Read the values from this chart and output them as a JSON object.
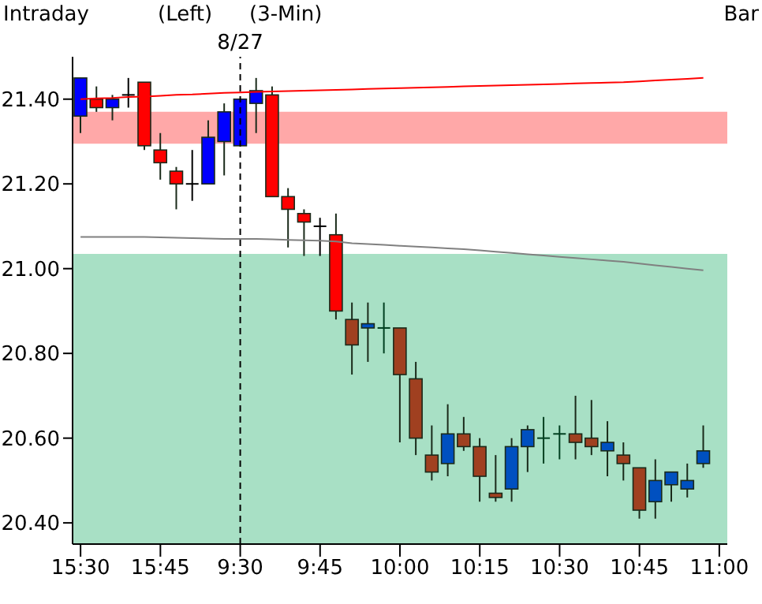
{
  "chart_data": {
    "type": "candlestick",
    "title": "(3-Min)",
    "annotations": [
      "Intraday",
      "(Left)",
      "Bar"
    ],
    "categories": [
      "15:30",
      null,
      null,
      null,
      null,
      "15:45",
      null,
      null,
      null,
      null,
      "9:30",
      null,
      null,
      null,
      null,
      "9:45",
      null,
      null,
      null,
      null,
      "10:00",
      null,
      null,
      null,
      null,
      "10:15",
      null,
      null,
      null,
      null,
      "10:30",
      null,
      null,
      null,
      null,
      "10:45",
      null,
      null,
      null,
      null,
      "11:00"
    ],
    "ohlc": [
      [
        21.36,
        21.45,
        21.32,
        21.45
      ],
      [
        21.4,
        21.43,
        21.37,
        21.38
      ],
      [
        21.38,
        21.41,
        21.35,
        21.4
      ],
      [
        21.41,
        21.45,
        21.38,
        21.41
      ],
      [
        21.44,
        21.44,
        21.28,
        21.29
      ],
      [
        21.28,
        21.32,
        21.21,
        21.25
      ],
      [
        21.23,
        21.24,
        21.14,
        21.2
      ],
      [
        21.2,
        21.28,
        21.16,
        21.2
      ],
      [
        21.2,
        21.35,
        21.2,
        21.31
      ],
      [
        21.3,
        21.39,
        21.22,
        21.37
      ],
      [
        21.29,
        21.4,
        21.29,
        21.4
      ],
      [
        21.39,
        21.45,
        21.32,
        21.42
      ],
      [
        21.41,
        21.43,
        21.17,
        21.17
      ],
      [
        21.17,
        21.19,
        21.05,
        21.14
      ],
      [
        21.13,
        21.14,
        21.03,
        21.11
      ],
      [
        21.1,
        21.12,
        21.03,
        21.1
      ],
      [
        21.08,
        21.13,
        20.88,
        20.9
      ],
      [
        20.88,
        20.92,
        20.75,
        20.82
      ],
      [
        20.86,
        20.92,
        20.78,
        20.87
      ],
      [
        20.86,
        20.92,
        20.8,
        20.86
      ],
      [
        20.86,
        20.86,
        20.59,
        20.75
      ],
      [
        20.74,
        20.78,
        20.56,
        20.6
      ],
      [
        20.56,
        20.63,
        20.5,
        20.52
      ],
      [
        20.54,
        20.68,
        20.51,
        20.61
      ],
      [
        20.61,
        20.65,
        20.57,
        20.58
      ],
      [
        20.58,
        20.6,
        20.45,
        20.51
      ],
      [
        20.47,
        20.56,
        20.45,
        20.46
      ],
      [
        20.48,
        20.6,
        20.45,
        20.58
      ],
      [
        20.58,
        20.63,
        20.52,
        20.62
      ],
      [
        20.6,
        20.65,
        20.54,
        20.6
      ],
      [
        20.61,
        20.63,
        20.55,
        20.61
      ],
      [
        20.61,
        20.7,
        20.55,
        20.59
      ],
      [
        20.6,
        20.69,
        20.56,
        20.58
      ],
      [
        20.57,
        20.64,
        20.51,
        20.59
      ],
      [
        20.56,
        20.59,
        20.5,
        20.54
      ],
      [
        20.53,
        20.53,
        20.41,
        20.43
      ],
      [
        20.45,
        20.55,
        20.41,
        20.5
      ],
      [
        20.49,
        20.52,
        20.45,
        20.52
      ],
      [
        20.48,
        20.54,
        20.46,
        20.5
      ],
      [
        20.54,
        20.63,
        20.53,
        20.57
      ],
      null
    ],
    "colors": [
      "#0000ff",
      "#ff0000",
      "#0000ff",
      "#000000",
      "#ff0000",
      "#ff0000",
      "#ff0000",
      "#000000",
      "#0000ff",
      "#0000ff",
      "#0000ff",
      "#0000ff",
      "#ff0000",
      "#ff0000",
      "#ff0000",
      "#000000",
      "#ff0000",
      "#a04020",
      "#0050c0",
      "#004020",
      "#a04020",
      "#a04020",
      "#a04020",
      "#0050c0",
      "#a04020",
      "#a04020",
      "#a04020",
      "#0050c0",
      "#0050c0",
      "#004020",
      "#004020",
      "#a04020",
      "#a04020",
      "#0050c0",
      "#a04020",
      "#a04020",
      "#0050c0",
      "#0050c0",
      "#0050c0",
      "#0050c0",
      null
    ],
    "series": [
      {
        "type": "line",
        "color": "#ff0000",
        "values": [
          21.4,
          21.402,
          21.403,
          21.405,
          21.406,
          21.408,
          21.41,
          21.411,
          21.413,
          21.415,
          21.416,
          21.417,
          21.418,
          21.419,
          21.42,
          21.421,
          21.422,
          21.423,
          21.424,
          21.425,
          21.426,
          21.427,
          21.428,
          21.429,
          21.43,
          21.431,
          21.432,
          21.433,
          21.434,
          21.435,
          21.436,
          21.437,
          21.438,
          21.439,
          21.44,
          21.442,
          21.444,
          21.446,
          21.448,
          21.45,
          null
        ]
      },
      {
        "type": "line",
        "color": "#808080",
        "values": [
          21.075,
          21.075,
          21.075,
          21.075,
          21.075,
          21.074,
          21.073,
          21.072,
          21.071,
          21.07,
          21.07,
          21.07,
          21.069,
          21.068,
          21.067,
          21.066,
          21.064,
          21.06,
          21.058,
          21.056,
          21.054,
          21.052,
          21.05,
          21.048,
          21.046,
          21.043,
          21.04,
          21.037,
          21.034,
          21.031,
          21.028,
          21.025,
          21.022,
          21.019,
          21.016,
          21.012,
          21.008,
          21.004,
          21.0,
          20.996,
          null
        ]
      }
    ],
    "ylim": [
      20.35,
      21.5
    ],
    "yticks": [
      {
        "value": 20.4,
        "label": "20.40"
      },
      {
        "value": 20.6,
        "label": "20.60"
      },
      {
        "value": 20.8,
        "label": "20.80"
      },
      {
        "value": 21,
        "label": "21.00"
      },
      {
        "value": 21.2,
        "label": "21.20"
      },
      {
        "value": 21.4,
        "label": "21.40"
      }
    ],
    "bands": [
      {
        "axis": "y",
        "from": 21.295,
        "to": 21.37,
        "color": "#ff9999"
      },
      {
        "axis": "y",
        "from": 20.35,
        "to": 21.035,
        "color": "#99dbbb"
      }
    ],
    "ref_lines": [
      {
        "axis": "x",
        "value": "9:30",
        "label": "8/27",
        "line_style": "dashed"
      }
    ]
  }
}
